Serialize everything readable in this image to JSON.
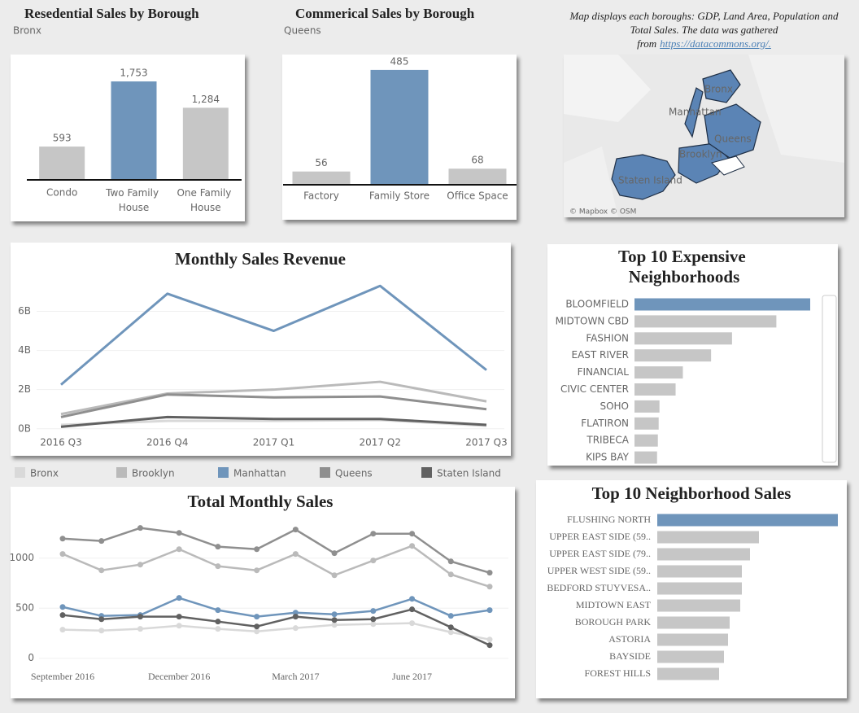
{
  "chart_data": [
    {
      "type": "bar",
      "title": "Resedential Sales by Borough",
      "subtitle": "Bronx",
      "categories": [
        "Condo",
        "Two Family House",
        "One Family House"
      ],
      "values": [
        593,
        1753,
        1284
      ],
      "value_labels": [
        "593",
        "1,753",
        "1,284"
      ],
      "colors": [
        "#c6c6c6",
        "#6f95bb",
        "#c6c6c6"
      ],
      "ylim": [
        0,
        2000
      ]
    },
    {
      "type": "bar",
      "title": "Commerical Sales by Borough",
      "subtitle": "Queens",
      "categories": [
        "Factory",
        "Family Store",
        "Office Space"
      ],
      "values": [
        56,
        485,
        68
      ],
      "colors": [
        "#c6c6c6",
        "#6f95bb",
        "#c6c6c6"
      ],
      "ylim": [
        0,
        550
      ]
    },
    {
      "type": "line",
      "title": "Monthly Sales Revenue",
      "categories": [
        "2016 Q3",
        "2016 Q4",
        "2017 Q1",
        "2017 Q2",
        "2017 Q3"
      ],
      "ylim": [
        -300000000,
        7600000000
      ],
      "yticks": [
        {
          "value": 0,
          "label": "0B"
        },
        {
          "value": 2000000000,
          "label": "2B"
        },
        {
          "value": 4000000000,
          "label": "4B"
        },
        {
          "value": 6000000000,
          "label": "6B"
        }
      ],
      "grid": true,
      "legend": "bottom",
      "series": [
        {
          "name": "Bronx",
          "color": "#d9d9d9",
          "values": [
            200000000,
            400000000,
            400000000,
            450000000,
            150000000
          ]
        },
        {
          "name": "Brooklyn",
          "color": "#bababa",
          "values": [
            750000000,
            1800000000,
            2000000000,
            2400000000,
            1400000000
          ]
        },
        {
          "name": "Manhattan",
          "color": "#6f95bb",
          "values": [
            2250000000,
            6900000000,
            5000000000,
            7300000000,
            3000000000
          ]
        },
        {
          "name": "Queens",
          "color": "#8f8f8f",
          "values": [
            600000000,
            1750000000,
            1600000000,
            1650000000,
            1000000000
          ]
        },
        {
          "name": "Staten Island",
          "color": "#616161",
          "values": [
            100000000,
            600000000,
            500000000,
            500000000,
            200000000
          ]
        }
      ]
    },
    {
      "type": "line",
      "title": "Total Monthly Sales",
      "categories": [
        "September 2016",
        null,
        null,
        "December 2016",
        null,
        null,
        "March 2017",
        null,
        null,
        "June 2017",
        null,
        null
      ],
      "ylim": [
        -100,
        1400
      ],
      "yticks": [
        0,
        500,
        1000
      ],
      "grid": true,
      "markers": true,
      "series": [
        {
          "name": "Bronx",
          "color": "#d9d9d9",
          "values": [
            285,
            276,
            293,
            325,
            293,
            268,
            301,
            333,
            341,
            350,
            260,
            187
          ]
        },
        {
          "name": "Brooklyn",
          "color": "#bababa",
          "values": [
            1041,
            878,
            935,
            1089,
            919,
            878,
            1041,
            829,
            976,
            1122,
            837,
            715
          ]
        },
        {
          "name": "Manhattan",
          "color": "#6f95bb",
          "values": [
            512,
            423,
            431,
            602,
            480,
            415,
            455,
            439,
            472,
            593,
            423,
            480
          ]
        },
        {
          "name": "Queens",
          "color": "#8f8f8f",
          "values": [
            1195,
            1171,
            1301,
            1252,
            1114,
            1089,
            1285,
            1049,
            1244,
            1244,
            967,
            854
          ]
        },
        {
          "name": "Staten Island",
          "color": "#616161",
          "values": [
            431,
            390,
            415,
            415,
            366,
            317,
            415,
            382,
            390,
            488,
            309,
            130
          ]
        }
      ]
    },
    {
      "type": "hbar",
      "title": "Top 10  Expensive Neighborhoods",
      "categories": [
        "BLOOMFIELD",
        "MIDTOWN CBD",
        "FASHION",
        "EAST RIVER",
        "FINANCIAL",
        "CIVIC CENTER",
        "SOHO",
        "FLATIRON",
        "TRIBECA",
        "KIPS BAY"
      ],
      "values": [
        218,
        176,
        121,
        95,
        60,
        51,
        31,
        30,
        29,
        28
      ],
      "xlim": [
        0,
        220
      ],
      "colors": [
        "#6f95bb",
        "#c6c6c6",
        "#c6c6c6",
        "#c6c6c6",
        "#c6c6c6",
        "#c6c6c6",
        "#c6c6c6",
        "#c6c6c6",
        "#c6c6c6",
        "#c6c6c6"
      ]
    },
    {
      "type": "hbar",
      "title": "Top 10 Neighborhood Sales",
      "categories": [
        "FLUSHING NORTH",
        "UPPER EAST SIDE (59..",
        "UPPER EAST SIDE (79..",
        "UPPER WEST SIDE (59..",
        "BEDFORD STUYVESA..",
        "MIDTOWN EAST",
        "BOROUGH PARK",
        "ASTORIA",
        "BAYSIDE",
        "FOREST HILLS"
      ],
      "values": [
        222,
        125,
        114,
        104,
        104,
        102,
        89,
        87,
        82,
        76
      ],
      "xlim": [
        0,
        222
      ],
      "colors": [
        "#6f95bb",
        "#c6c6c6",
        "#c6c6c6",
        "#c6c6c6",
        "#c6c6c6",
        "#c6c6c6",
        "#c6c6c6",
        "#c6c6c6",
        "#c6c6c6",
        "#c6c6c6"
      ]
    }
  ],
  "map": {
    "caption": "Map displays each boroughs: GDP, Land Area, Population and Total Sales. The data was gathered from",
    "link": "https://datacommons.org/.",
    "labels": [
      "Bronx",
      "Manhattan",
      "Queens",
      "Brooklyn",
      "Staten Island"
    ],
    "attribution": "© Mapbox © OSM"
  }
}
